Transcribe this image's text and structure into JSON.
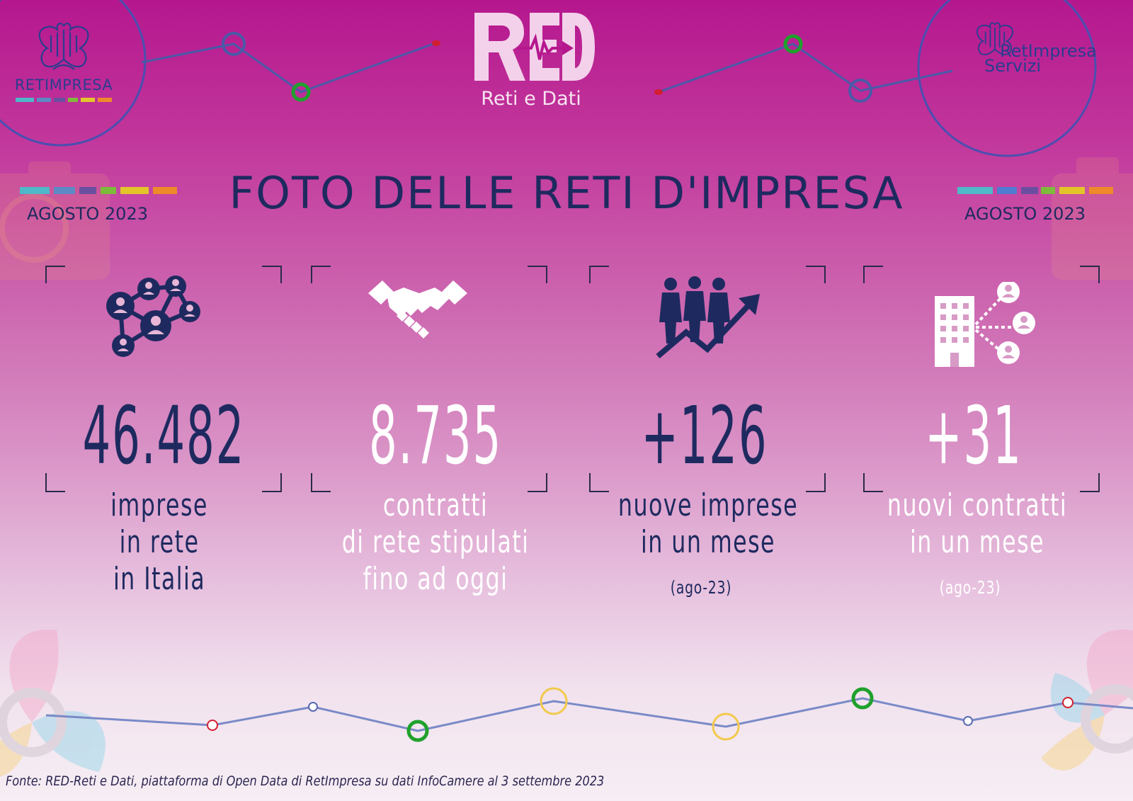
{
  "brand": {
    "left_logo_text": "RETIMPRESA",
    "red_subtitle": "Reti e Dati",
    "right_logo_line1": "RetImpresa",
    "right_logo_line2": "Servizi"
  },
  "header": {
    "title": "FOTO DELLE RETI D'IMPRESA",
    "date_left": "AGOSTO 2023",
    "date_right": "AGOSTO 2023"
  },
  "stats": [
    {
      "icon": "network-people-icon",
      "value": "46.482",
      "label_lines": [
        "imprese",
        "in rete",
        "in Italia"
      ],
      "color": "#1e2a5f"
    },
    {
      "icon": "handshake-icon",
      "value": "8.735",
      "label_lines": [
        "contratti",
        "di rete stipulati",
        "fino ad oggi"
      ],
      "color": "#ffffff"
    },
    {
      "icon": "people-growth-icon",
      "value": "+126",
      "label_lines": [
        "nuove imprese",
        "in un mese"
      ],
      "sub": "(ago-23)",
      "color": "#1e2a5f"
    },
    {
      "icon": "building-network-icon",
      "value": "+31",
      "label_lines": [
        "nuovi contratti",
        "in un mese"
      ],
      "sub": "(ago-23)",
      "color": "#ffffff"
    }
  ],
  "footer": {
    "source": "Fonte: RED-Reti e Dati, piattaforma di Open Data di RetImpresa su dati InfoCamere al 3 settembre 2023"
  },
  "colors": {
    "navy": "#1e2a5f",
    "magenta": "#b5178e",
    "logo_blue": "#2a3d8f",
    "node_green": "#1fa12c",
    "node_yellow": "#f2c94c",
    "node_red": "#d21e2e"
  }
}
